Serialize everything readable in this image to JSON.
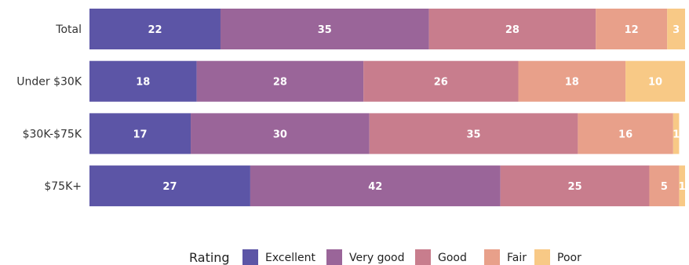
{
  "chart_data": {
    "type": "bar",
    "orientation": "horizontal",
    "stacked": true,
    "categories": [
      "Total",
      "Under $30K",
      "$30K-$75K",
      "$75K+"
    ],
    "series": [
      {
        "name": "Excellent",
        "values": [
          22,
          18,
          17,
          27
        ],
        "color": "#5c55a6"
      },
      {
        "name": "Very good",
        "values": [
          35,
          28,
          30,
          42
        ],
        "color": "#9a6599"
      },
      {
        "name": "Good",
        "values": [
          28,
          26,
          35,
          25
        ],
        "color": "#c87d8d"
      },
      {
        "name": "Fair",
        "values": [
          12,
          18,
          16,
          5
        ],
        "color": "#e8a08a"
      },
      {
        "name": "Poor",
        "values": [
          3,
          10,
          1,
          1
        ],
        "color": "#f8c986"
      }
    ],
    "legend": {
      "title": "Rating",
      "position": "bottom"
    },
    "grid": false,
    "xlim": [
      0,
      100
    ]
  }
}
